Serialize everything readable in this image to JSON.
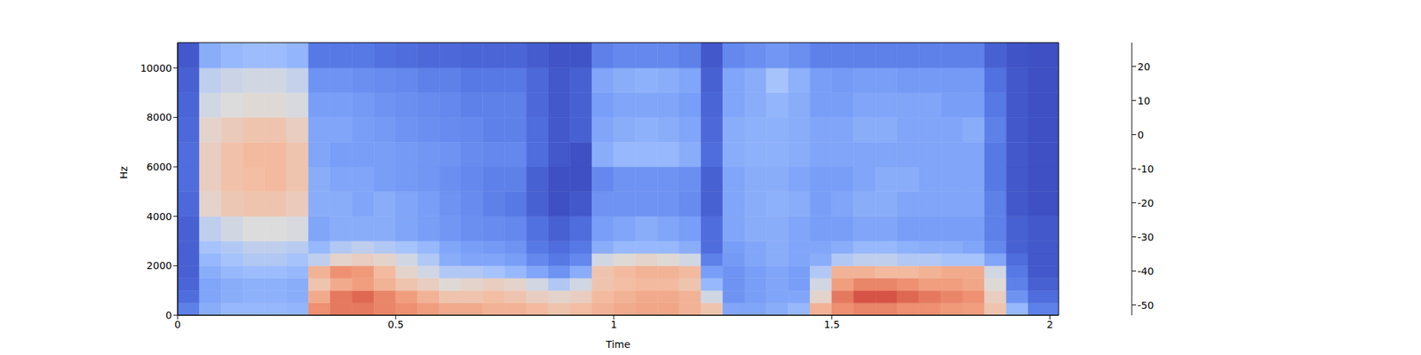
{
  "chart_data": {
    "type": "heatmap",
    "xlabel": "Time",
    "ylabel": "Hz",
    "xlim": [
      0,
      2.02
    ],
    "xticks": [
      0,
      0.5,
      1,
      1.5,
      2
    ],
    "ylim": [
      0,
      11025
    ],
    "yticks": [
      0,
      2000,
      4000,
      6000,
      8000,
      10000
    ],
    "time_bins": [
      0,
      0.05,
      0.1,
      0.15,
      0.2,
      0.25,
      0.3,
      0.35,
      0.4,
      0.45,
      0.5,
      0.55,
      0.6,
      0.65,
      0.7,
      0.75,
      0.8,
      0.85,
      0.9,
      0.95,
      1,
      1.05,
      1.1,
      1.15,
      1.2,
      1.25,
      1.3,
      1.35,
      1.4,
      1.45,
      1.5,
      1.55,
      1.6,
      1.65,
      1.7,
      1.75,
      1.8,
      1.85,
      1.9,
      1.95,
      2.02
    ],
    "freq_bins": [
      0,
      500,
      1000,
      1500,
      2000,
      2500,
      3000,
      4000,
      5000,
      6000,
      7000,
      8000,
      9000,
      10000,
      11025
    ],
    "cells": [
      [
        -40,
        -45,
        -47,
        -48,
        -48,
        -48,
        -48,
        -46,
        -45,
        -45,
        -46,
        -47,
        -48,
        -50
      ],
      [
        -28,
        -30,
        -30,
        -28,
        -25,
        -22,
        -18,
        -10,
        -8,
        -8,
        -10,
        -15,
        -18,
        -28
      ],
      [
        -25,
        -28,
        -28,
        -25,
        -22,
        -20,
        -15,
        -6,
        -4,
        -4,
        -7,
        -13,
        -16,
        -25
      ],
      [
        -25,
        -27,
        -27,
        -24,
        -20,
        -18,
        -13,
        -5,
        -3,
        -2,
        -5,
        -12,
        -15,
        -24
      ],
      [
        -25,
        -27,
        -27,
        -24,
        -20,
        -18,
        -13,
        -5,
        -2,
        -2,
        -5,
        -12,
        -15,
        -24
      ],
      [
        -26,
        -28,
        -28,
        -25,
        -22,
        -19,
        -14,
        -7,
        -5,
        -5,
        -8,
        -14,
        -17,
        -26
      ],
      [
        8,
        2,
        -5,
        0,
        -18,
        -25,
        -30,
        -28,
        -28,
        -30,
        -30,
        -32,
        -35,
        -42
      ],
      [
        12,
        12,
        2,
        8,
        -10,
        -20,
        -28,
        -28,
        -30,
        -32,
        -30,
        -32,
        -35,
        -42
      ],
      [
        12,
        15,
        5,
        6,
        -8,
        -18,
        -28,
        -30,
        -30,
        -32,
        -32,
        -33,
        -36,
        -42
      ],
      [
        10,
        10,
        0,
        -2,
        -10,
        -20,
        -28,
        -28,
        -32,
        -32,
        -33,
        -35,
        -37,
        -44
      ],
      [
        8,
        5,
        -5,
        -10,
        -15,
        -22,
        -30,
        -30,
        -33,
        -33,
        -35,
        -36,
        -38,
        -45
      ],
      [
        5,
        0,
        -8,
        -15,
        -20,
        -25,
        -32,
        -32,
        -34,
        -34,
        -36,
        -37,
        -40,
        -46
      ],
      [
        2,
        -5,
        -12,
        -20,
        -28,
        -30,
        -34,
        -35,
        -36,
        -35,
        -37,
        -38,
        -40,
        -46
      ],
      [
        2,
        -5,
        -10,
        -20,
        -30,
        -32,
        -36,
        -37,
        -38,
        -37,
        -38,
        -40,
        -42,
        -47
      ],
      [
        0,
        -3,
        -8,
        -22,
        -30,
        -33,
        -37,
        -40,
        -40,
        -38,
        -40,
        -40,
        -42,
        -47
      ],
      [
        0,
        -5,
        -10,
        -25,
        -32,
        -35,
        -38,
        -42,
        -40,
        -38,
        -40,
        -40,
        -42,
        -47
      ],
      [
        -2,
        -8,
        -15,
        -30,
        -38,
        -42,
        -44,
        -48,
        -48,
        -45,
        -45,
        -46,
        -46,
        -49
      ],
      [
        -5,
        -10,
        -20,
        -35,
        -42,
        -45,
        -48,
        -52,
        -52,
        -50,
        -50,
        -50,
        -50,
        -51
      ],
      [
        -3,
        -8,
        -15,
        -28,
        -38,
        -42,
        -45,
        -50,
        -52,
        -52,
        -48,
        -48,
        -48,
        -51
      ],
      [
        0,
        -2,
        -5,
        -5,
        -15,
        -28,
        -32,
        -35,
        -38,
        -28,
        -30,
        -32,
        -30,
        -40
      ],
      [
        2,
        0,
        -3,
        -2,
        -12,
        -25,
        -30,
        -35,
        -35,
        -25,
        -28,
        -30,
        -28,
        -38
      ],
      [
        3,
        2,
        -2,
        0,
        -10,
        -25,
        -28,
        -35,
        -35,
        -25,
        -27,
        -30,
        -27,
        -38
      ],
      [
        3,
        2,
        -2,
        0,
        -12,
        -25,
        -30,
        -35,
        -35,
        -25,
        -28,
        -30,
        -28,
        -38
      ],
      [
        0,
        0,
        -5,
        -2,
        -15,
        -28,
        -32,
        -37,
        -36,
        -28,
        -30,
        -32,
        -30,
        -40
      ],
      [
        -5,
        -15,
        -25,
        -32,
        -40,
        -45,
        -45,
        -48,
        -48,
        -45,
        -46,
        -47,
        -48,
        -50
      ],
      [
        -30,
        -35,
        -35,
        -35,
        -33,
        -32,
        -30,
        -30,
        -30,
        -28,
        -28,
        -30,
        -30,
        -38
      ],
      [
        -30,
        -32,
        -32,
        -32,
        -30,
        -30,
        -28,
        -28,
        -28,
        -27,
        -27,
        -28,
        -28,
        -36
      ],
      [
        -28,
        -30,
        -30,
        -30,
        -28,
        -28,
        -28,
        -27,
        -28,
        -27,
        -27,
        -26,
        -22,
        -34
      ],
      [
        -25,
        -30,
        -32,
        -32,
        -30,
        -30,
        -30,
        -28,
        -30,
        -28,
        -28,
        -28,
        -27,
        -36
      ],
      [
        0,
        -10,
        -15,
        -20,
        -28,
        -30,
        -32,
        -32,
        -32,
        -30,
        -30,
        -32,
        -32,
        -40
      ],
      [
        8,
        12,
        5,
        0,
        -20,
        -28,
        -32,
        -30,
        -32,
        -30,
        -30,
        -32,
        -33,
        -40
      ],
      [
        10,
        18,
        10,
        0,
        -18,
        -25,
        -30,
        -28,
        -30,
        -30,
        -28,
        -30,
        -32,
        -40
      ],
      [
        10,
        18,
        10,
        -2,
        -18,
        -25,
        -30,
        -28,
        -28,
        -30,
        -28,
        -30,
        -32,
        -40
      ],
      [
        8,
        15,
        8,
        -2,
        -20,
        -27,
        -32,
        -30,
        -28,
        -30,
        -30,
        -30,
        -33,
        -40
      ],
      [
        8,
        12,
        5,
        0,
        -20,
        -28,
        -32,
        -30,
        -30,
        -30,
        -30,
        -30,
        -33,
        -40
      ],
      [
        6,
        10,
        5,
        2,
        -22,
        -28,
        -32,
        -30,
        -30,
        -30,
        -30,
        -32,
        -33,
        -40
      ],
      [
        5,
        8,
        3,
        2,
        -22,
        -30,
        -32,
        -30,
        -30,
        -30,
        -28,
        -32,
        -33,
        -40
      ],
      [
        -5,
        -8,
        -12,
        -15,
        -30,
        -38,
        -40,
        -40,
        -42,
        -42,
        -40,
        -42,
        -44,
        -48
      ],
      [
        -25,
        -35,
        -40,
        -42,
        -45,
        -48,
        -48,
        -50,
        -50,
        -50,
        -50,
        -50,
        -50,
        -51
      ],
      [
        -40,
        -45,
        -48,
        -50,
        -50,
        -50,
        -50,
        -52,
        -52,
        -52,
        -52,
        -52,
        -52,
        -52
      ]
    ],
    "colorbar": {
      "range": [
        -53,
        27
      ],
      "ticks": [
        -50,
        -40,
        -30,
        -20,
        -10,
        0,
        10,
        20
      ]
    }
  }
}
